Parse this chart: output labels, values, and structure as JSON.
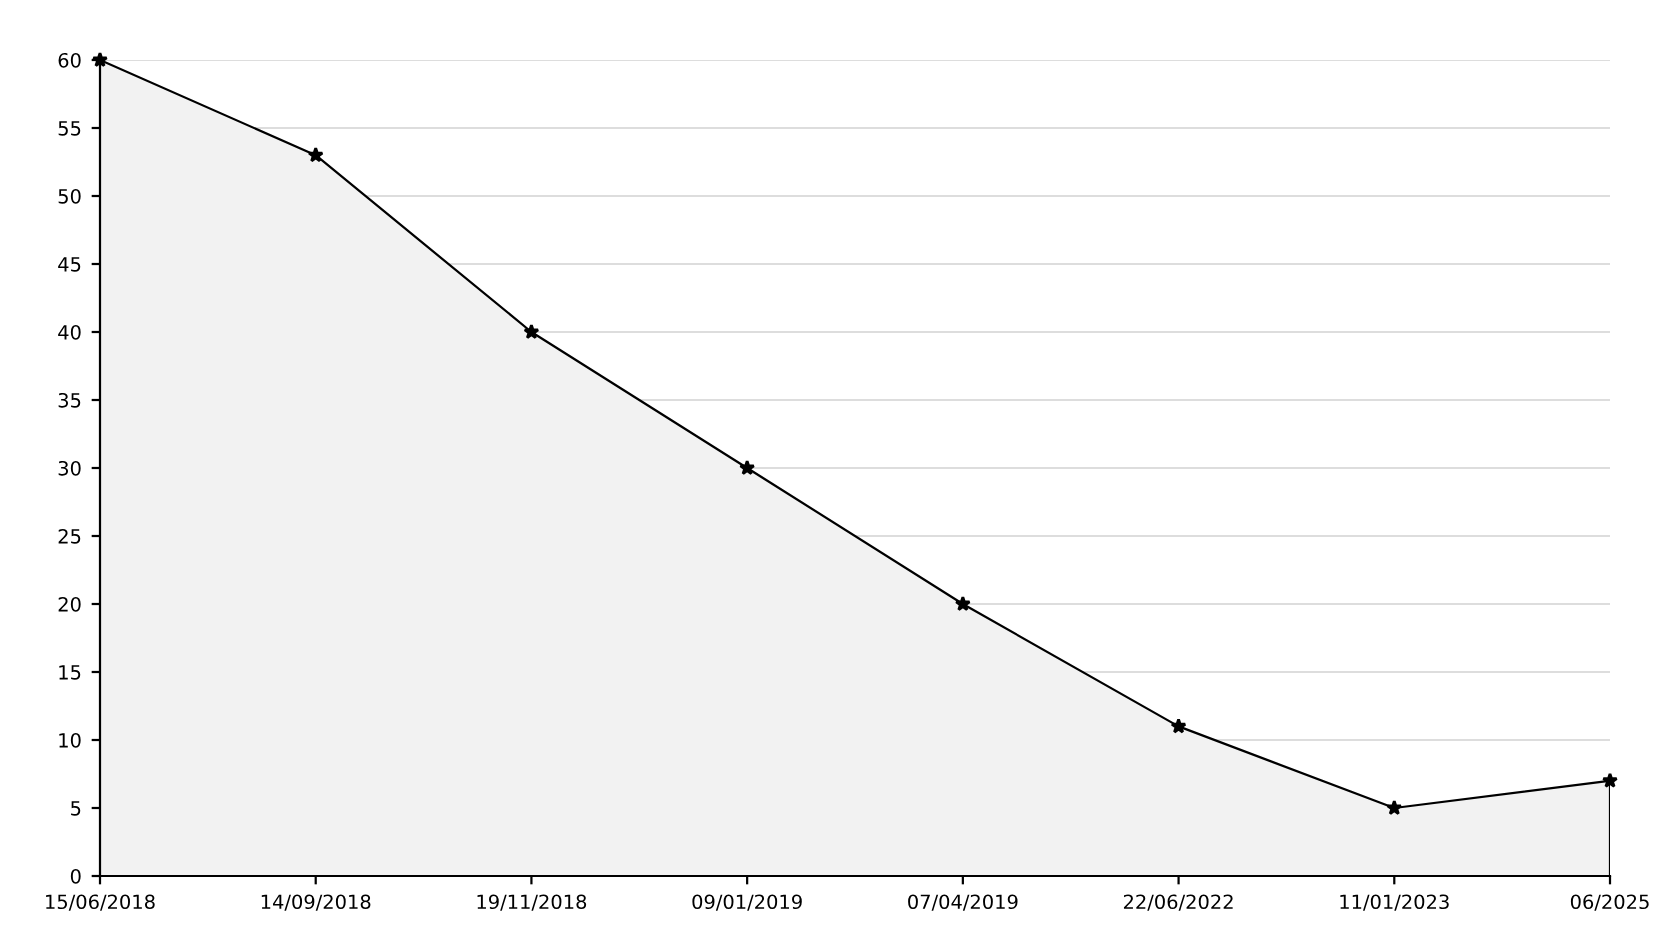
{
  "chart_data": {
    "type": "area",
    "categories": [
      "15/06/2018",
      "14/09/2018",
      "19/11/2018",
      "09/01/2019",
      "07/04/2019",
      "22/06/2022",
      "11/01/2023",
      "06/2025"
    ],
    "series": [
      {
        "color": "#000000",
        "values": [
          60,
          53,
          40,
          30,
          20,
          11,
          5,
          7
        ]
      }
    ],
    "ylim": [
      0,
      60
    ],
    "yticks": [
      0,
      5,
      10,
      15,
      20,
      25,
      30,
      35,
      40,
      45,
      50,
      55,
      60
    ],
    "grid": "y",
    "marker": "star",
    "line_style": "solid",
    "legend": false
  }
}
